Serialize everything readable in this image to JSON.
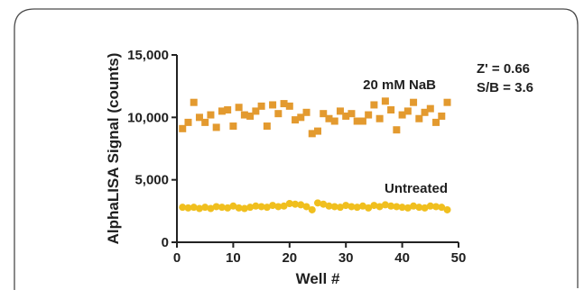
{
  "colors": {
    "frame": "#4a4a4a",
    "axis": "#222222",
    "nab_series": "#e39a2f",
    "untreated_series": "#f0bf1e",
    "text": "#1f1f1f"
  },
  "chart_data": {
    "type": "scatter",
    "title": "",
    "xlabel": "Well #",
    "ylabel": "AlphaLISA Signal (counts)",
    "xlim": [
      0,
      50
    ],
    "ylim": [
      0,
      15000
    ],
    "x_ticks": [
      0,
      10,
      20,
      30,
      40,
      50
    ],
    "x_tick_labels": [
      "0",
      "10",
      "20",
      "30",
      "40",
      "50"
    ],
    "y_ticks": [
      0,
      5000,
      10000,
      15000
    ],
    "y_tick_labels": [
      "0",
      "5,000",
      "10,000",
      "15,000"
    ],
    "grid": false,
    "series": [
      {
        "name": "20 mM NaB",
        "marker": "square",
        "x": [
          1,
          2,
          3,
          4,
          5,
          6,
          7,
          8,
          9,
          10,
          11,
          12,
          13,
          14,
          15,
          16,
          17,
          18,
          19,
          20,
          21,
          22,
          23,
          24,
          25,
          26,
          27,
          28,
          29,
          30,
          31,
          32,
          33,
          34,
          35,
          36,
          37,
          38,
          39,
          40,
          41,
          42,
          43,
          44,
          45,
          46,
          47,
          48
        ],
        "values": [
          9100,
          9600,
          11200,
          10000,
          9600,
          10200,
          9200,
          10500,
          10600,
          9300,
          10800,
          10200,
          10100,
          10500,
          10900,
          9300,
          11000,
          10300,
          11100,
          10900,
          9800,
          10000,
          10400,
          8700,
          8900,
          10300,
          9900,
          9700,
          10500,
          10100,
          10300,
          9700,
          9700,
          10200,
          11000,
          9900,
          11300,
          10600,
          9000,
          10200,
          10500,
          11200,
          9900,
          10400,
          10700,
          9600,
          10100,
          11200
        ]
      },
      {
        "name": "Untreated",
        "marker": "circle",
        "x": [
          1,
          2,
          3,
          4,
          5,
          6,
          7,
          8,
          9,
          10,
          11,
          12,
          13,
          14,
          15,
          16,
          17,
          18,
          19,
          20,
          21,
          22,
          23,
          24,
          25,
          26,
          27,
          28,
          29,
          30,
          31,
          32,
          33,
          34,
          35,
          36,
          37,
          38,
          39,
          40,
          41,
          42,
          43,
          44,
          45,
          46,
          47,
          48
        ],
        "values": [
          2800,
          2750,
          2800,
          2700,
          2800,
          2700,
          2850,
          2800,
          2750,
          2900,
          2750,
          2700,
          2800,
          2900,
          2850,
          2800,
          2950,
          2850,
          2900,
          3100,
          3050,
          3000,
          2850,
          2600,
          3150,
          3050,
          2900,
          2850,
          2800,
          2950,
          2850,
          2800,
          2900,
          2750,
          2950,
          2850,
          3000,
          2900,
          2850,
          2800,
          2750,
          2900,
          2800,
          2750,
          2900,
          2850,
          2800,
          2600
        ]
      }
    ],
    "annotations": [
      {
        "text": "20 mM NaB"
      },
      {
        "text": "Untreated"
      },
      {
        "text": "Z' = 0.66"
      },
      {
        "text": "S/B = 3.6"
      }
    ]
  }
}
